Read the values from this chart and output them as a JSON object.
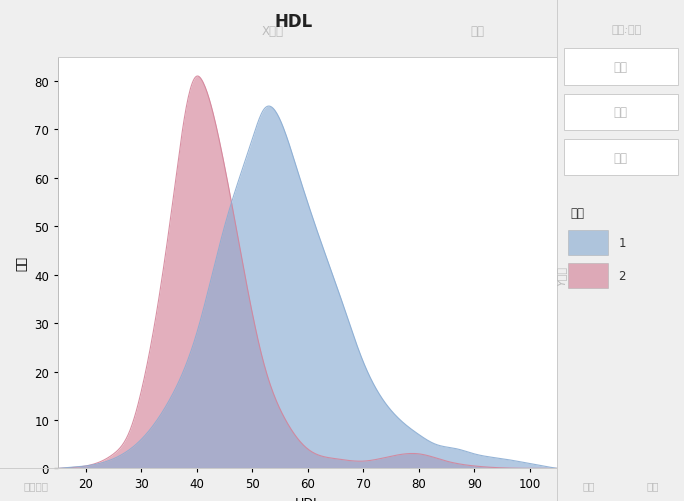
{
  "title": "HDL",
  "xlabel": "HDL",
  "ylabel": "计数",
  "xlim": [
    15,
    105
  ],
  "ylim": [
    0,
    85
  ],
  "xticks": [
    20,
    30,
    40,
    50,
    60,
    70,
    80,
    90,
    100
  ],
  "yticks": [
    0,
    10,
    20,
    30,
    40,
    50,
    60,
    70,
    80
  ],
  "gender1_color": "#8BADD3",
  "gender1_alpha": 0.65,
  "gender1_label": "1",
  "gender1_x": [
    15,
    20,
    25,
    30,
    35,
    40,
    45,
    50,
    52,
    55,
    58,
    62,
    66,
    70,
    75,
    80,
    83,
    87,
    90,
    95,
    100,
    105
  ],
  "gender1_y": [
    0,
    0.5,
    2,
    6,
    14,
    28,
    50,
    68,
    74,
    72,
    62,
    48,
    35,
    22,
    12,
    7,
    5,
    4,
    3,
    2,
    1,
    0
  ],
  "gender2_color": "#D4849A",
  "gender2_alpha": 0.65,
  "gender2_label": "2",
  "gender2_x": [
    15,
    20,
    25,
    28,
    30,
    33,
    36,
    38,
    40,
    41,
    44,
    48,
    52,
    56,
    60,
    65,
    70,
    75,
    80,
    85,
    90,
    100,
    105
  ],
  "gender2_y": [
    0,
    0.5,
    3,
    8,
    16,
    34,
    58,
    74,
    81,
    80,
    68,
    44,
    22,
    10,
    4,
    2,
    1.5,
    2.5,
    3,
    1.5,
    0.5,
    0,
    0
  ],
  "legend_title": "性别",
  "panel_bg": "#EFEFEF",
  "plot_bg": "#FFFFFF",
  "panel_text_color": "#AAAAAA",
  "title_fontsize": 12,
  "axis_label_fontsize": 9,
  "panel_right_labels": [
    "颜色",
    "大小",
    "区间"
  ],
  "top_label1": "X分组",
  "top_label2": "重叠",
  "top_label3": "叠加:性别",
  "right_rotated": "Y分组",
  "bottom_label1": "地图形状",
  "bottom_label2": "频数",
  "bottom_label3": "页面"
}
